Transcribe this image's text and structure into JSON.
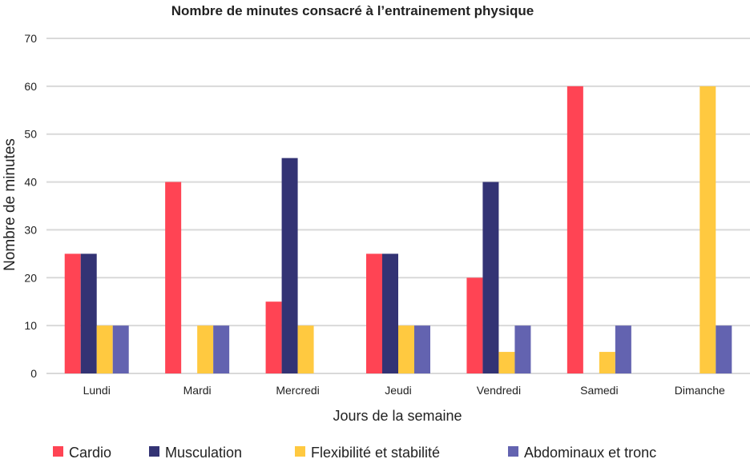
{
  "chart_data": {
    "type": "bar",
    "title": "Nombre de minutes consacré à l’entrainement physique",
    "xlabel": "Jours de la semaine",
    "ylabel": "Nombre de minutes",
    "ylim": [
      0,
      70
    ],
    "yticks": [
      0,
      10,
      20,
      30,
      40,
      50,
      60,
      70
    ],
    "grid": true,
    "legend_position": "bottom",
    "categories": [
      "Lundi",
      "Mardi",
      "Mercredi",
      "Jeudi",
      "Vendredi",
      "Samedi",
      "Dimanche"
    ],
    "series": [
      {
        "name": "Cardio",
        "color": "#FF4454",
        "values": [
          25,
          40,
          15,
          25,
          20,
          60,
          0
        ]
      },
      {
        "name": "Musculation",
        "color": "#333374",
        "values": [
          25,
          0,
          45,
          25,
          40,
          0,
          0
        ]
      },
      {
        "name": "Flexibilité et stabilité",
        "color": "#FFC940",
        "values": [
          10,
          10,
          10,
          10,
          4.5,
          4.5,
          60
        ]
      },
      {
        "name": "Abdominaux et tronc",
        "color": "#6363B0",
        "values": [
          10,
          10,
          0,
          10,
          10,
          10,
          10
        ]
      }
    ]
  }
}
